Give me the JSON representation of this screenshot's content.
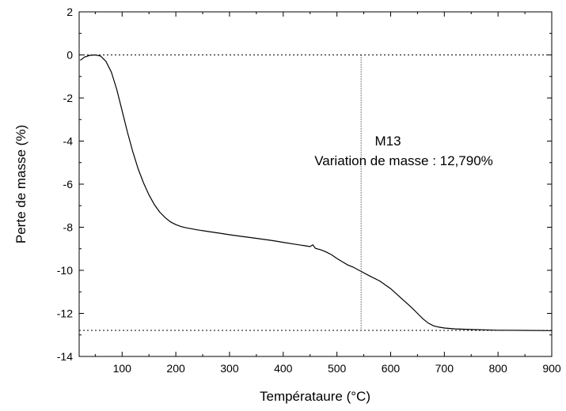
{
  "chart_data": {
    "type": "line",
    "xlabel": "Températaure (°C)",
    "ylabel": "Perte de masse (%)",
    "xlim": [
      20,
      900
    ],
    "ylim": [
      -14,
      2
    ],
    "x_ticks": [
      100,
      200,
      300,
      400,
      500,
      600,
      700,
      800,
      900
    ],
    "y_ticks": [
      2,
      0,
      -2,
      -4,
      -6,
      -8,
      -10,
      -12,
      -14
    ],
    "x_tick_labels": [
      "100",
      "200",
      "300",
      "400",
      "500",
      "600",
      "700",
      "800",
      "900"
    ],
    "y_tick_labels": [
      "2",
      "0",
      "-2",
      "-4",
      "-6",
      "-8",
      "-10",
      "-12",
      "-14"
    ],
    "annotation": {
      "sample": "M13",
      "text": "Variation de masse : 12,790%",
      "x": 510,
      "y": -4.5
    },
    "reference_lines": {
      "upper_y": 0,
      "lower_y": -12.79,
      "vertical_x": 545
    },
    "series": [
      {
        "x": [
          22,
          30,
          40,
          50,
          60,
          70,
          80,
          90,
          100,
          110,
          120,
          130,
          140,
          150,
          160,
          170,
          180,
          190,
          200,
          210,
          220,
          240,
          260,
          280,
          300,
          320,
          340,
          360,
          380,
          400,
          420,
          440,
          450,
          455,
          460,
          470,
          480,
          490,
          500,
          510,
          520,
          530,
          545,
          560,
          580,
          600,
          620,
          640,
          650,
          660,
          670,
          680,
          690,
          700,
          720,
          750,
          800,
          850,
          900
        ],
        "values": [
          -0.25,
          -0.1,
          -0.02,
          0.0,
          -0.05,
          -0.3,
          -0.8,
          -1.6,
          -2.6,
          -3.6,
          -4.5,
          -5.3,
          -5.95,
          -6.5,
          -6.95,
          -7.3,
          -7.55,
          -7.75,
          -7.88,
          -7.97,
          -8.03,
          -8.12,
          -8.2,
          -8.27,
          -8.35,
          -8.42,
          -8.48,
          -8.55,
          -8.62,
          -8.7,
          -8.78,
          -8.86,
          -8.9,
          -8.82,
          -8.98,
          -9.05,
          -9.15,
          -9.28,
          -9.45,
          -9.6,
          -9.75,
          -9.85,
          -10.05,
          -10.25,
          -10.5,
          -10.85,
          -11.3,
          -11.75,
          -12.0,
          -12.25,
          -12.45,
          -12.58,
          -12.64,
          -12.68,
          -12.72,
          -12.75,
          -12.78,
          -12.79,
          -12.8
        ]
      }
    ]
  }
}
